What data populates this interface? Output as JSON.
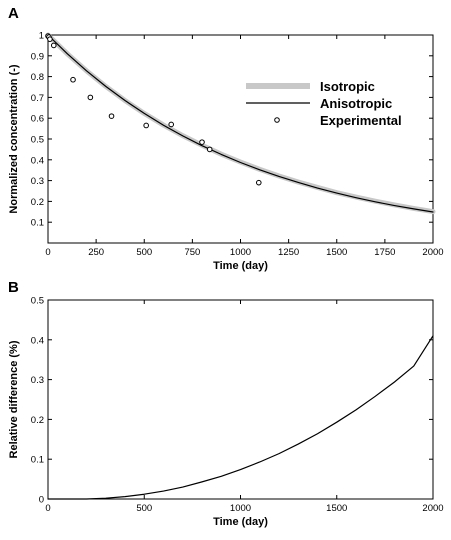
{
  "chart_data": [
    {
      "panel": "A",
      "type": "line",
      "xlabel": "Time (day)",
      "ylabel": "Normalized concentration (-)",
      "xlim": [
        0,
        2000
      ],
      "ylim": [
        0,
        1
      ],
      "xticks": [
        0,
        250,
        500,
        750,
        1000,
        1250,
        1500,
        1750,
        2000
      ],
      "yticks": [
        0.1,
        0.2,
        0.3,
        0.4,
        0.5,
        0.6,
        0.7,
        0.8,
        0.9,
        1
      ],
      "grid": false,
      "legend_position": "right",
      "series": [
        {
          "name": "Isotropic",
          "style": "thick light gray line",
          "color": "#c8c8c8",
          "x": [
            0,
            100,
            200,
            300,
            400,
            500,
            600,
            700,
            800,
            900,
            1000,
            1100,
            1200,
            1300,
            1400,
            1500,
            1600,
            1700,
            1800,
            1900,
            2000
          ],
          "y": [
            1.0,
            0.91,
            0.828,
            0.753,
            0.685,
            0.623,
            0.567,
            0.516,
            0.47,
            0.427,
            0.389,
            0.354,
            0.322,
            0.293,
            0.267,
            0.242,
            0.221,
            0.201,
            0.183,
            0.166,
            0.151
          ]
        },
        {
          "name": "Anisotropic",
          "style": "thin black line",
          "color": "#000000",
          "x": [
            0,
            100,
            200,
            300,
            400,
            500,
            600,
            700,
            800,
            900,
            1000,
            1100,
            1200,
            1300,
            1400,
            1500,
            1600,
            1700,
            1800,
            1900,
            2000
          ],
          "y": [
            1.0,
            0.91,
            0.828,
            0.753,
            0.685,
            0.623,
            0.566,
            0.515,
            0.468,
            0.426,
            0.387,
            0.352,
            0.32,
            0.291,
            0.264,
            0.24,
            0.218,
            0.198,
            0.18,
            0.164,
            0.149
          ]
        },
        {
          "name": "Experimental",
          "style": "open circle markers",
          "color": "#000000",
          "x": [
            0,
            5,
            10,
            30,
            130,
            220,
            330,
            510,
            640,
            800,
            840,
            1095
          ],
          "y": [
            0.995,
            0.99,
            0.98,
            0.95,
            0.785,
            0.7,
            0.61,
            0.565,
            0.57,
            0.485,
            0.45,
            0.29
          ]
        }
      ]
    },
    {
      "panel": "B",
      "type": "line",
      "xlabel": "Time (day)",
      "ylabel": "Relative difference (%)",
      "xlim": [
        0,
        2000
      ],
      "ylim": [
        0,
        0.5
      ],
      "xticks": [
        0,
        500,
        1000,
        1500,
        2000
      ],
      "yticks": [
        0,
        0.1,
        0.2,
        0.3,
        0.4,
        0.5
      ],
      "grid": false,
      "series": [
        {
          "color": "#000000",
          "x": [
            0,
            100,
            200,
            300,
            400,
            500,
            600,
            700,
            800,
            900,
            1000,
            1100,
            1200,
            1300,
            1400,
            1500,
            1600,
            1700,
            1800,
            1900,
            2000
          ],
          "y": [
            0.0,
            0.0,
            0.0,
            0.002,
            0.006,
            0.012,
            0.02,
            0.03,
            0.043,
            0.057,
            0.074,
            0.093,
            0.114,
            0.138,
            0.164,
            0.193,
            0.224,
            0.258,
            0.294,
            0.334,
            0.41
          ]
        }
      ]
    }
  ]
}
